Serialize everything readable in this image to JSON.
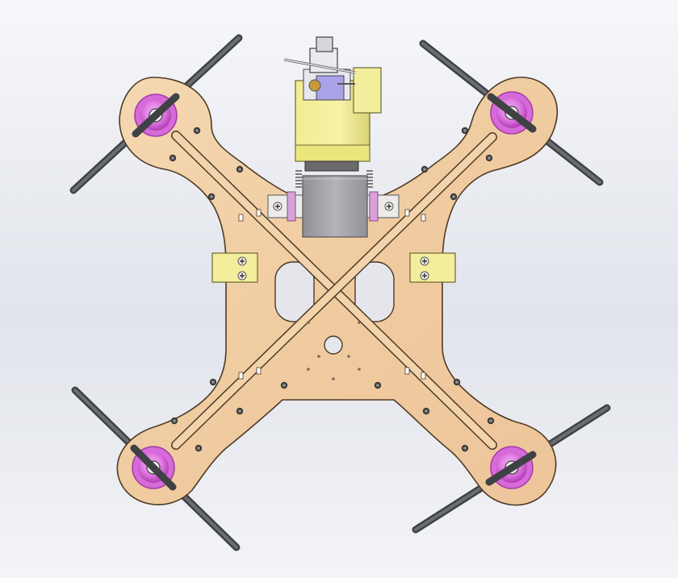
{
  "colors": {
    "background_top": "#f6f7fa",
    "background_mid": "#e2e5ec",
    "background_bottom": "#f3f4f7",
    "wood": "#f2d0a6",
    "wood_dark": "#e2b584",
    "wood_outline": "#5a4630",
    "motor_magenta": "#e17ae3",
    "motor_rim": "#c24ac7",
    "propeller": "#55585c",
    "servo_yellow": "#f4ef9a",
    "servo_shadow": "#d6cf6e",
    "gray_block": "#a3a4a7",
    "bracket_white": "#ecebea",
    "clip_pink": "#d8a2d8",
    "screw_dark": "#2e2e2e",
    "spring": "#8c8c8c"
  },
  "parts": {
    "frame": "x-frame-plate",
    "motors": [
      "motor-front-left",
      "motor-front-right",
      "motor-rear-left",
      "motor-rear-right"
    ],
    "propellers": [
      "propeller-front-left",
      "propeller-front-right",
      "propeller-rear-left",
      "propeller-rear-right"
    ],
    "payload": [
      "servo-gimbal-mount",
      "gray-battery-box",
      "side-mount-block-left",
      "side-mount-block-right"
    ]
  }
}
